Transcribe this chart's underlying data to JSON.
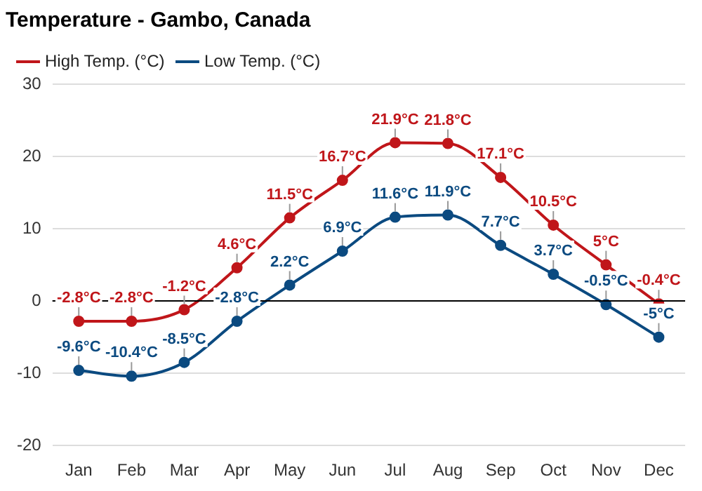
{
  "chart_data": {
    "type": "line",
    "title": "Temperature - Gambo, Canada",
    "categories": [
      "Jan",
      "Feb",
      "Mar",
      "Apr",
      "May",
      "Jun",
      "Jul",
      "Aug",
      "Sep",
      "Oct",
      "Nov",
      "Dec"
    ],
    "series": [
      {
        "name": "High Temp. (°C)",
        "color": "#c0161a",
        "values": [
          -2.8,
          -2.8,
          -1.2,
          4.6,
          11.5,
          16.7,
          21.9,
          21.8,
          17.1,
          10.5,
          5,
          -0.4
        ],
        "value_labels": [
          "-2.8°C",
          "-2.8°C",
          "-1.2°C",
          "4.6°C",
          "11.5°C",
          "16.7°C",
          "21.9°C",
          "21.8°C",
          "17.1°C",
          "10.5°C",
          "5°C",
          "-0.4°C"
        ]
      },
      {
        "name": "Low Temp. (°C)",
        "color": "#0b4a80",
        "values": [
          -9.6,
          -10.4,
          -8.5,
          -2.8,
          2.2,
          6.9,
          11.6,
          11.9,
          7.7,
          3.7,
          -0.5,
          -5
        ],
        "value_labels": [
          "-9.6°C",
          "-10.4°C",
          "-8.5°C",
          "-2.8°C",
          "2.2°C",
          "6.9°C",
          "11.6°C",
          "11.9°C",
          "7.7°C",
          "3.7°C",
          "-0.5°C",
          "-5°C"
        ]
      }
    ],
    "ylim": [
      -20,
      30
    ],
    "yticks": [
      -20,
      -10,
      0,
      10,
      20,
      30
    ],
    "grid": "y",
    "legend": "top left",
    "marker": "circle",
    "line_style": "solid",
    "ref_lines": [
      {
        "axis": "y",
        "value": 0,
        "color": "#000000"
      }
    ]
  }
}
